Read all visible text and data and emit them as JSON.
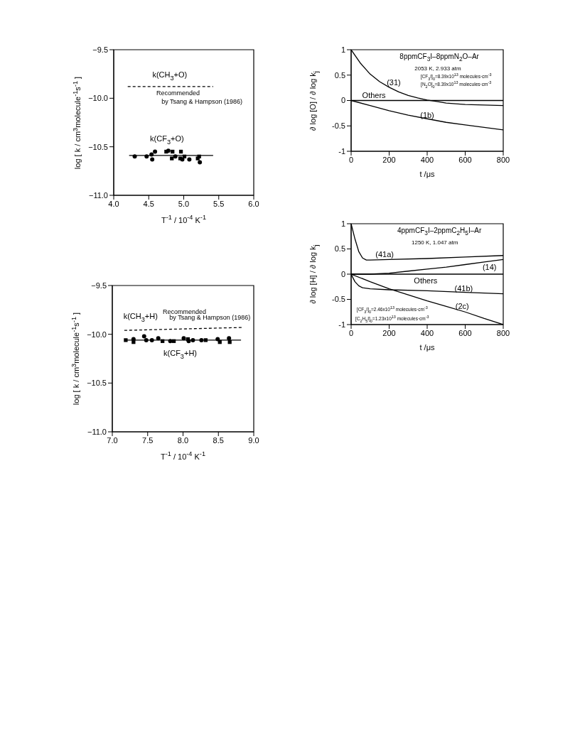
{
  "chart_data": [
    {
      "type": "scatter",
      "xlabel": "T$^{-1}$ / 10$^{-4}$ K$^{-1}$",
      "ylabel": "log [ k / cm$^{3}$molecule$^{-1}$s$^{-1}$ ]",
      "xlim": [
        4,
        6
      ],
      "xticks": [
        {
          "value": 4,
          "label": "4.0"
        },
        {
          "value": 4.5,
          "label": "4.5"
        },
        {
          "value": 5,
          "label": "5.0"
        },
        {
          "value": 5.5,
          "label": "5.5"
        },
        {
          "value": 6,
          "label": "6.0"
        }
      ],
      "ylim": [
        -11,
        -9.5
      ],
      "yticks": [
        {
          "value": -11,
          "label": "−11.0"
        },
        {
          "value": -10.5,
          "label": "−10.5"
        },
        {
          "value": -10,
          "label": "−10.0"
        },
        {
          "value": -9.5,
          "label": "−9.5"
        }
      ],
      "series": [
        {
          "type": "line",
          "marker": "none",
          "line_style": "dashed",
          "color": "#000000",
          "x": [
            4.2,
            5.42
          ],
          "values": [
            -9.88,
            -9.88
          ]
        },
        {
          "type": "line",
          "marker": "none",
          "line_style": "solid",
          "color": "#000000",
          "x": [
            4.22,
            5.42
          ],
          "values": [
            -10.59,
            -10.59
          ]
        },
        {
          "type": "scatter",
          "marker": "circle",
          "color": "#000000",
          "x": [
            4.3,
            4.47,
            4.54,
            4.55,
            4.59,
            4.78,
            4.88,
            4.98,
            5.08,
            5.23
          ],
          "values": [
            -10.6,
            -10.6,
            -10.58,
            -10.63,
            -10.55,
            -10.54,
            -10.6,
            -10.63,
            -10.63,
            -10.66
          ]
        },
        {
          "type": "scatter",
          "marker": "square",
          "color": "#000000",
          "x": [
            4.75,
            4.83,
            4.84,
            4.95,
            4.96,
            5.01,
            5.2,
            5.22
          ],
          "values": [
            -10.55,
            -10.62,
            -10.55,
            -10.62,
            -10.55,
            -10.6,
            -10.62,
            -10.6
          ]
        }
      ],
      "annotations": [
        "k(CH$_{3}$+O)",
        "Recommended",
        "by Tsang & Hampson (1986)",
        "k(CF$_{3}$+O)"
      ]
    },
    {
      "type": "line",
      "xlabel": "t /μs",
      "ylabel": "∂ log [O] / ∂ log k$_{j}$",
      "xlim": [
        0,
        800
      ],
      "xticks": [
        0,
        200,
        400,
        600,
        800
      ],
      "ylim": [
        -1,
        1
      ],
      "yticks": [
        -1,
        -0.5,
        0,
        0.5,
        1
      ],
      "marker": "none",
      "line_style": "solid",
      "series": [
        {
          "color": "#000000",
          "x": [
            0,
            50,
            100,
            150,
            200,
            250,
            300,
            350,
            400,
            450,
            500,
            600,
            700,
            800
          ],
          "values": [
            1,
            0.73,
            0.52,
            0.37,
            0.26,
            0.17,
            0.1,
            0.05,
            0.01,
            -0.02,
            -0.05,
            -0.08,
            -0.09,
            -0.1
          ]
        },
        {
          "color": "#000000",
          "x": [
            0,
            800
          ],
          "values": [
            0,
            0
          ]
        },
        {
          "color": "#000000",
          "x": [
            0,
            100,
            200,
            300,
            400,
            500,
            600,
            700,
            800
          ],
          "values": [
            0,
            -0.1,
            -0.2,
            -0.29,
            -0.36,
            -0.43,
            -0.48,
            -0.53,
            -0.58
          ]
        }
      ],
      "annotations": [
        "8ppmCF$_{3}$I–8ppmN$_{2}$O–Ar",
        "2053 K, 2.933 atm",
        "[CF$_{3}$I]$_{0}$=8.39x10$^{13}$ molecules·cm$^{-3}$",
        "[N$_{2}$O]$_{0}$=8.39x10$^{13}$ molecules·cm$^{-3}$",
        "(31)",
        "Others",
        "(1b)"
      ]
    },
    {
      "type": "scatter",
      "xlabel": "T$^{-1}$ / 10$^{-4}$ K$^{-1}$",
      "ylabel": "log [ k / cm$^{3}$molecule$^{-1}$s$^{-1}$ ]",
      "xlim": [
        7,
        9
      ],
      "xticks": [
        {
          "value": 7,
          "label": "7.0"
        },
        {
          "value": 7.5,
          "label": "7.5"
        },
        {
          "value": 8,
          "label": "8.0"
        },
        {
          "value": 8.5,
          "label": "8.5"
        },
        {
          "value": 9,
          "label": "9.0"
        }
      ],
      "ylim": [
        -11,
        -9.5
      ],
      "yticks": [
        {
          "value": -11,
          "label": "−11.0"
        },
        {
          "value": -10.5,
          "label": "−10.5"
        },
        {
          "value": -10,
          "label": "−10.0"
        },
        {
          "value": -9.5,
          "label": "−9.5"
        }
      ],
      "series": [
        {
          "type": "line",
          "marker": "none",
          "line_style": "dashed",
          "color": "#000000",
          "x": [
            7.17,
            8.85
          ],
          "values": [
            -9.96,
            -9.93
          ]
        },
        {
          "type": "line",
          "marker": "none",
          "line_style": "solid",
          "color": "#000000",
          "x": [
            7.17,
            8.82
          ],
          "values": [
            -10.06,
            -10.06
          ]
        },
        {
          "type": "scatter",
          "marker": "circle",
          "color": "#000000",
          "x": [
            7.3,
            7.45,
            7.48,
            7.56,
            7.65,
            7.82,
            8.01,
            8.08,
            8.14,
            8.26,
            8.49,
            8.65
          ],
          "values": [
            -10.05,
            -10.02,
            -10.06,
            -10.06,
            -10.04,
            -10.07,
            -10.04,
            -10.07,
            -10.06,
            -10.06,
            -10.05,
            -10.04
          ]
        },
        {
          "type": "scatter",
          "marker": "square",
          "color": "#000000",
          "x": [
            7.19,
            7.3,
            7.71,
            7.87,
            8.07,
            8.32,
            8.52,
            8.66
          ],
          "values": [
            -10.06,
            -10.08,
            -10.07,
            -10.07,
            -10.05,
            -10.06,
            -10.08,
            -10.08
          ]
        }
      ],
      "annotations": [
        "k(CH$_{3}$+H)",
        "Recommended",
        "by Tsang & Hampson (1986)",
        "k(CF$_{3}$+H)"
      ]
    },
    {
      "type": "line",
      "xlabel": "t /μs",
      "ylabel": "∂ log [H] / ∂ log k$_{j}$",
      "xlim": [
        0,
        800
      ],
      "xticks": [
        0,
        200,
        400,
        600,
        800
      ],
      "ylim": [
        -1,
        1
      ],
      "yticks": [
        -1,
        -0.5,
        0,
        0.5,
        1
      ],
      "marker": "none",
      "line_style": "solid",
      "series": [
        {
          "color": "#000000",
          "x": [
            0,
            20,
            40,
            60,
            80,
            100,
            200,
            400,
            600,
            800
          ],
          "values": [
            1,
            0.7,
            0.45,
            0.32,
            0.28,
            0.28,
            0.29,
            0.31,
            0.34,
            0.37
          ]
        },
        {
          "color": "#000000",
          "x": [
            0,
            100,
            200,
            300,
            400,
            500,
            600,
            700,
            800
          ],
          "values": [
            0,
            0,
            0.02,
            0.06,
            0.1,
            0.14,
            0.19,
            0.24,
            0.29
          ]
        },
        {
          "color": "#000000",
          "x": [
            0,
            800
          ],
          "values": [
            0,
            0
          ]
        },
        {
          "color": "#000000",
          "x": [
            0,
            20,
            40,
            60,
            100,
            200,
            400,
            600,
            800
          ],
          "values": [
            0,
            -0.15,
            -0.23,
            -0.27,
            -0.29,
            -0.31,
            -0.33,
            -0.36,
            -0.39
          ]
        },
        {
          "color": "#000000",
          "x": [
            0,
            100,
            200,
            300,
            400,
            500,
            600,
            700,
            800
          ],
          "values": [
            0,
            -0.15,
            -0.29,
            -0.41,
            -0.53,
            -0.64,
            -0.75,
            -0.88,
            -1
          ]
        }
      ],
      "annotations": [
        "4ppmCF$_{3}$I–2ppmC$_{2}$H$_{5}$I–Ar",
        "1250 K, 1.047 atm",
        "[CF$_{3}$I]$_{0}$=2.46x10$^{13}$ molecules·cm$^{-3}$",
        "[C$_{2}$H$_{5}$I]$_{0}$=1.23x10$^{13}$ molecules·cm$^{-3}$",
        "(41a)",
        "(14)",
        "Others",
        "(41b)",
        "(2c)"
      ]
    }
  ]
}
